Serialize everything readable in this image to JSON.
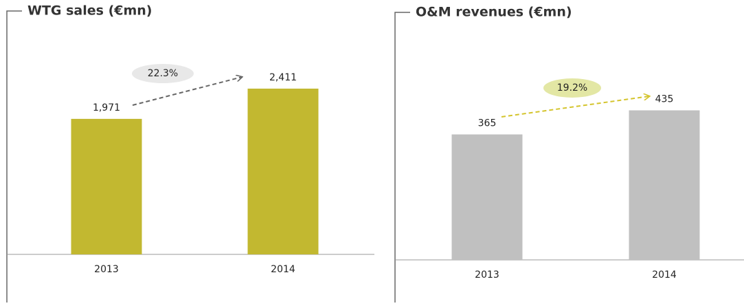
{
  "chart_data": [
    {
      "type": "bar",
      "title": "WTG sales (€mn)",
      "categories": [
        "2013",
        "2014"
      ],
      "values": [
        1971,
        2411
      ],
      "value_labels": [
        "1,971",
        "2,411"
      ],
      "color": "#c2b830",
      "ylim": [
        0,
        3000
      ],
      "annotation": "22.3%",
      "annotation_color": "#e8e8e8",
      "arrow_color": "#666666"
    },
    {
      "type": "bar",
      "title": "O&M revenues (€mn)",
      "categories": [
        "2013",
        "2014"
      ],
      "values": [
        365,
        435
      ],
      "value_labels": [
        "365",
        "435"
      ],
      "color": "#c0c0c0",
      "ylim": [
        0,
        600
      ],
      "annotation": "19.2%",
      "annotation_color": "#e3e7a4",
      "arrow_color": "#d4c42c"
    }
  ]
}
